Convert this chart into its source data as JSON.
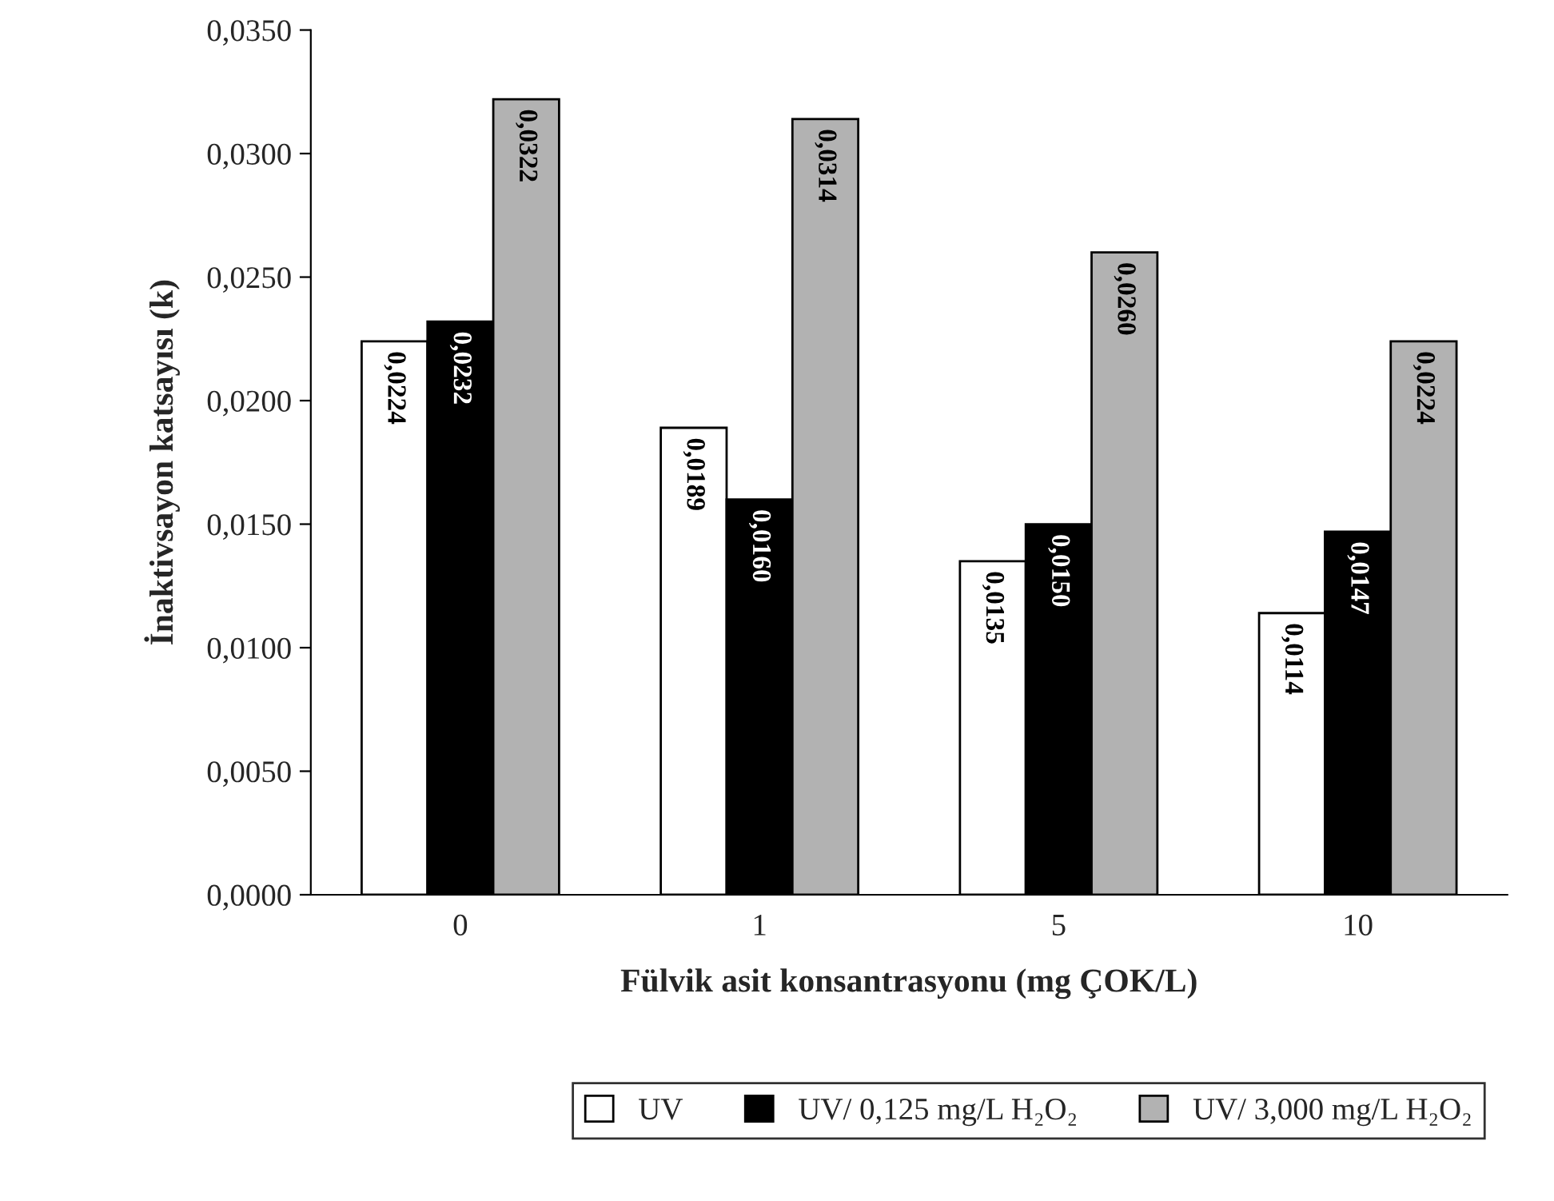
{
  "chart_data": {
    "type": "bar",
    "xlabel": "Fülvik asit konsantrasyonu (mg ÇOK/L)",
    "ylabel": "İnaktivsayon katsayısı (k)",
    "categories": [
      "0",
      "1",
      "5",
      "10"
    ],
    "series": [
      {
        "name": "UV",
        "color": "#ffffff",
        "values": [
          0.0224,
          0.0189,
          0.0135,
          0.0114
        ],
        "value_labels": [
          "0,0224",
          "0,0189",
          "0,0135",
          "0,0114"
        ]
      },
      {
        "name": "UV/ 0,125 mg/L H₂O₂",
        "color": "#000000",
        "values": [
          0.0232,
          0.016,
          0.015,
          0.0147
        ],
        "value_labels": [
          "0,0232",
          "0,0160",
          "0,0150",
          "0,0147"
        ]
      },
      {
        "name": "UV/ 3,000 mg/L H₂O₂",
        "color": "#b2b2b2",
        "values": [
          0.0322,
          0.0314,
          0.026,
          0.0224
        ],
        "value_labels": [
          "0,0322",
          "0,0314",
          "0,0260",
          "0,0224"
        ]
      }
    ],
    "ylim": [
      0,
      0.035
    ],
    "yticks": [
      {
        "value": 0,
        "label": "0,0000"
      },
      {
        "value": 0.005,
        "label": "0,0050"
      },
      {
        "value": 0.01,
        "label": "0,0100"
      },
      {
        "value": 0.015,
        "label": "0,0150"
      },
      {
        "value": 0.02,
        "label": "0,0200"
      },
      {
        "value": 0.025,
        "label": "0,0250"
      },
      {
        "value": 0.03,
        "label": "0,0300"
      },
      {
        "value": 0.035,
        "label": "0,0350"
      }
    ],
    "grid": false,
    "legend": "bottom"
  }
}
